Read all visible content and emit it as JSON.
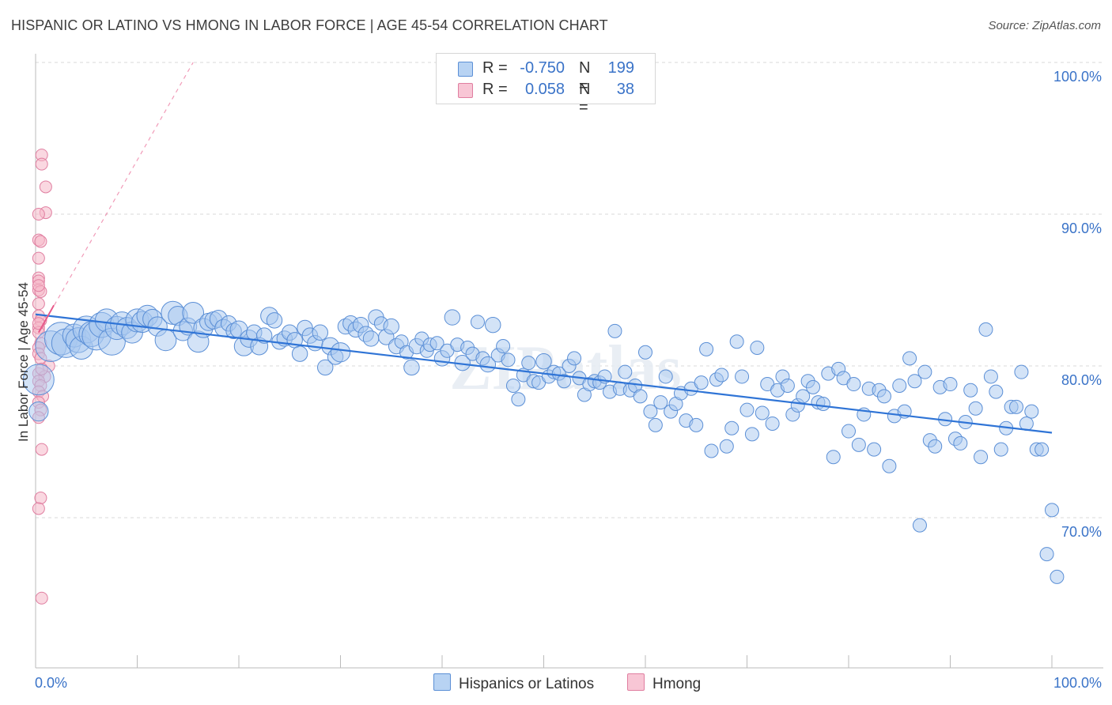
{
  "title": "HISPANIC OR LATINO VS HMONG IN LABOR FORCE | AGE 45-54 CORRELATION CHART",
  "source": "Source: ZipAtlas.com",
  "watermark": "ZIPatlas",
  "colors": {
    "blue_fill": "#a8c8f0",
    "blue_stroke": "#5b8fd6",
    "blue_line": "#2f74d6",
    "pink_fill": "#f5b8c9",
    "pink_stroke": "#e07ea0",
    "pink_line": "#e8598a",
    "accent_text": "#3a73c8",
    "grid": "#d9d9d9"
  },
  "legend_top": {
    "rows": [
      {
        "r_label": "R =",
        "r_value": "-0.750",
        "n_label": "N =",
        "n_value": "199",
        "color": "blue"
      },
      {
        "r_label": "R =",
        "r_value": "0.058",
        "n_label": "N =",
        "n_value": "38",
        "color": "pink"
      }
    ]
  },
  "legend_bottom": {
    "items": [
      {
        "label": "Hispanics or Latinos",
        "color": "blue"
      },
      {
        "label": "Hmong",
        "color": "pink"
      }
    ]
  },
  "chart_data": {
    "type": "scatter",
    "title": "HISPANIC OR LATINO VS HMONG IN LABOR FORCE | AGE 45-54 CORRELATION CHART",
    "ylabel": "In Labor Force | Age 45-54",
    "xlabel": "",
    "xlim": [
      0,
      100
    ],
    "ylim": [
      60,
      102
    ],
    "x_tick_labels": [
      "0.0%",
      "100.0%"
    ],
    "y_ticks": [
      70,
      80,
      90,
      100
    ],
    "y_tick_labels": [
      "70.0%",
      "80.0%",
      "90.0%",
      "100.0%"
    ],
    "grid": true,
    "legend_placement": "top-center",
    "series": [
      {
        "name": "Hispanics or Latinos",
        "color": "blue",
        "trend": {
          "x0": 0,
          "y0": 83.4,
          "x1": 100,
          "y1": 75.6
        },
        "points": [
          [
            0.3,
            79.1,
            3.2
          ],
          [
            0.3,
            77.0,
            2.0
          ],
          [
            1.5,
            81.3,
            3.2
          ],
          [
            2.5,
            81.8,
            3.4
          ],
          [
            3.0,
            81.5,
            3.0
          ],
          [
            3.8,
            82.0,
            2.4
          ],
          [
            4.2,
            81.7,
            2.6
          ],
          [
            4.5,
            81.2,
            2.4
          ],
          [
            5.0,
            82.4,
            2.8
          ],
          [
            5.5,
            82.1,
            2.6
          ],
          [
            6.0,
            82.0,
            3.0
          ],
          [
            6.5,
            82.7,
            2.6
          ],
          [
            7.0,
            83.0,
            2.4
          ],
          [
            7.5,
            81.6,
            2.8
          ],
          [
            8.0,
            82.5,
            2.4
          ],
          [
            8.5,
            82.8,
            2.4
          ],
          [
            9.0,
            82.5,
            2.2
          ],
          [
            9.5,
            82.2,
            2.2
          ],
          [
            10.0,
            83.0,
            2.4
          ],
          [
            10.5,
            82.9,
            2.2
          ],
          [
            11.0,
            83.3,
            2.2
          ],
          [
            11.5,
            83.1,
            2.0
          ],
          [
            12.0,
            82.6,
            2.0
          ],
          [
            12.8,
            81.7,
            2.2
          ],
          [
            13.5,
            83.5,
            2.4
          ],
          [
            14.0,
            83.3,
            2.0
          ],
          [
            14.5,
            82.3,
            2.0
          ],
          [
            15.0,
            82.6,
            1.8
          ],
          [
            15.5,
            83.5,
            2.2
          ],
          [
            16.0,
            81.6,
            2.2
          ],
          [
            16.5,
            82.5,
            2.0
          ],
          [
            17.0,
            82.9,
            1.8
          ],
          [
            17.5,
            83.0,
            1.8
          ],
          [
            18.0,
            83.1,
            1.8
          ],
          [
            18.5,
            82.5,
            1.8
          ],
          [
            19.0,
            82.8,
            1.6
          ],
          [
            19.5,
            82.3,
            1.6
          ],
          [
            20.0,
            82.4,
            1.8
          ],
          [
            20.5,
            81.3,
            2.0
          ],
          [
            21.0,
            81.8,
            1.8
          ],
          [
            21.5,
            82.2,
            1.6
          ],
          [
            22.0,
            81.3,
            1.8
          ],
          [
            22.5,
            82.0,
            1.6
          ],
          [
            23.0,
            83.3,
            1.8
          ],
          [
            23.5,
            83.0,
            1.6
          ],
          [
            24.0,
            81.6,
            1.6
          ],
          [
            24.5,
            81.8,
            1.6
          ],
          [
            25.0,
            82.2,
            1.6
          ],
          [
            25.5,
            81.7,
            1.6
          ],
          [
            26.0,
            80.8,
            1.6
          ],
          [
            26.5,
            82.5,
            1.6
          ],
          [
            27.0,
            82.0,
            1.6
          ],
          [
            27.5,
            81.5,
            1.6
          ],
          [
            28.0,
            82.2,
            1.6
          ],
          [
            28.5,
            79.9,
            1.6
          ],
          [
            29.0,
            81.3,
            1.8
          ],
          [
            29.5,
            80.6,
            1.6
          ],
          [
            30.0,
            80.9,
            2.0
          ],
          [
            30.5,
            82.6,
            1.6
          ],
          [
            31.0,
            82.8,
            1.6
          ],
          [
            31.5,
            82.4,
            1.6
          ],
          [
            32.0,
            82.7,
            1.6
          ],
          [
            32.5,
            82.1,
            1.6
          ],
          [
            33.0,
            81.8,
            1.6
          ],
          [
            33.5,
            83.2,
            1.6
          ],
          [
            34.0,
            82.8,
            1.4
          ],
          [
            34.5,
            81.9,
            1.6
          ],
          [
            35.0,
            82.6,
            1.6
          ],
          [
            35.5,
            81.3,
            1.6
          ],
          [
            36.0,
            81.6,
            1.4
          ],
          [
            36.5,
            80.9,
            1.4
          ],
          [
            37.0,
            79.9,
            1.6
          ],
          [
            37.5,
            81.3,
            1.6
          ],
          [
            38.0,
            81.8,
            1.4
          ],
          [
            38.5,
            81.0,
            1.4
          ],
          [
            38.8,
            81.4,
            1.4
          ],
          [
            39.5,
            81.5,
            1.4
          ],
          [
            40.0,
            80.5,
            1.6
          ],
          [
            40.5,
            81.0,
            1.4
          ],
          [
            41.0,
            83.2,
            1.6
          ],
          [
            41.5,
            81.4,
            1.4
          ],
          [
            42.0,
            80.2,
            1.6
          ],
          [
            42.5,
            81.2,
            1.4
          ],
          [
            43.0,
            80.8,
            1.4
          ],
          [
            43.5,
            82.9,
            1.4
          ],
          [
            44.0,
            80.5,
            1.4
          ],
          [
            44.5,
            80.1,
            1.6
          ],
          [
            45.0,
            82.7,
            1.6
          ],
          [
            45.5,
            80.7,
            1.4
          ],
          [
            46.0,
            81.3,
            1.4
          ],
          [
            46.5,
            80.4,
            1.4
          ],
          [
            47.0,
            78.7,
            1.4
          ],
          [
            47.5,
            77.8,
            1.4
          ],
          [
            48.0,
            79.4,
            1.4
          ],
          [
            48.5,
            80.2,
            1.4
          ],
          [
            49.0,
            79.0,
            1.4
          ],
          [
            49.5,
            78.9,
            1.4
          ],
          [
            50.0,
            80.3,
            1.6
          ],
          [
            50.5,
            79.3,
            1.4
          ],
          [
            51.0,
            79.6,
            1.4
          ],
          [
            51.5,
            79.5,
            1.4
          ],
          [
            52.0,
            79.0,
            1.4
          ],
          [
            52.5,
            80.0,
            1.4
          ],
          [
            53.0,
            80.5,
            1.4
          ],
          [
            53.5,
            79.2,
            1.4
          ],
          [
            54.0,
            78.1,
            1.4
          ],
          [
            54.5,
            78.8,
            1.4
          ],
          [
            55.0,
            79.0,
            1.4
          ],
          [
            55.5,
            78.9,
            1.4
          ],
          [
            56.0,
            79.3,
            1.4
          ],
          [
            56.5,
            78.3,
            1.4
          ],
          [
            57.0,
            82.3,
            1.4
          ],
          [
            57.5,
            78.5,
            1.4
          ],
          [
            58.0,
            79.6,
            1.4
          ],
          [
            58.5,
            78.4,
            1.4
          ],
          [
            59.0,
            78.7,
            1.4
          ],
          [
            59.5,
            78.0,
            1.4
          ],
          [
            60.0,
            80.9,
            1.4
          ],
          [
            60.5,
            77.0,
            1.4
          ],
          [
            61.0,
            76.1,
            1.4
          ],
          [
            61.5,
            77.6,
            1.4
          ],
          [
            62.0,
            79.3,
            1.4
          ],
          [
            62.5,
            77.0,
            1.4
          ],
          [
            63.0,
            77.5,
            1.4
          ],
          [
            63.5,
            78.2,
            1.4
          ],
          [
            64.0,
            76.4,
            1.4
          ],
          [
            64.5,
            78.5,
            1.4
          ],
          [
            65.0,
            76.1,
            1.4
          ],
          [
            65.5,
            78.9,
            1.4
          ],
          [
            66.0,
            81.1,
            1.4
          ],
          [
            66.5,
            74.4,
            1.4
          ],
          [
            67.0,
            79.1,
            1.4
          ],
          [
            67.5,
            79.4,
            1.4
          ],
          [
            68.0,
            74.7,
            1.4
          ],
          [
            68.5,
            75.9,
            1.4
          ],
          [
            69.0,
            81.6,
            1.4
          ],
          [
            69.5,
            79.3,
            1.4
          ],
          [
            70.0,
            77.1,
            1.4
          ],
          [
            70.5,
            75.5,
            1.4
          ],
          [
            71.0,
            81.2,
            1.4
          ],
          [
            71.5,
            76.9,
            1.4
          ],
          [
            72.0,
            78.8,
            1.4
          ],
          [
            72.5,
            76.2,
            1.4
          ],
          [
            73.0,
            78.4,
            1.4
          ],
          [
            73.5,
            79.3,
            1.4
          ],
          [
            74.0,
            78.7,
            1.4
          ],
          [
            74.5,
            76.8,
            1.4
          ],
          [
            75.0,
            77.4,
            1.4
          ],
          [
            75.5,
            78.0,
            1.4
          ],
          [
            76.0,
            79.0,
            1.4
          ],
          [
            76.5,
            78.6,
            1.4
          ],
          [
            77.0,
            77.6,
            1.4
          ],
          [
            77.5,
            77.5,
            1.4
          ],
          [
            78.0,
            79.5,
            1.4
          ],
          [
            78.5,
            74.0,
            1.4
          ],
          [
            79.0,
            79.8,
            1.4
          ],
          [
            79.5,
            79.2,
            1.4
          ],
          [
            80.0,
            75.7,
            1.4
          ],
          [
            80.5,
            78.8,
            1.4
          ],
          [
            81.0,
            74.8,
            1.4
          ],
          [
            81.5,
            76.8,
            1.4
          ],
          [
            82.0,
            78.5,
            1.4
          ],
          [
            82.5,
            74.5,
            1.4
          ],
          [
            83.0,
            78.4,
            1.4
          ],
          [
            83.5,
            78.0,
            1.4
          ],
          [
            84.0,
            73.4,
            1.4
          ],
          [
            84.5,
            76.7,
            1.4
          ],
          [
            85.0,
            78.7,
            1.4
          ],
          [
            85.5,
            77.0,
            1.4
          ],
          [
            86.0,
            80.5,
            1.4
          ],
          [
            86.5,
            79.0,
            1.4
          ],
          [
            87.0,
            69.5,
            1.4
          ],
          [
            87.5,
            79.6,
            1.4
          ],
          [
            88.0,
            75.1,
            1.4
          ],
          [
            88.5,
            74.7,
            1.4
          ],
          [
            89.0,
            78.6,
            1.4
          ],
          [
            89.5,
            76.5,
            1.4
          ],
          [
            90.0,
            78.8,
            1.4
          ],
          [
            90.5,
            75.2,
            1.4
          ],
          [
            91.0,
            74.9,
            1.4
          ],
          [
            91.5,
            76.3,
            1.4
          ],
          [
            92.0,
            78.4,
            1.4
          ],
          [
            92.5,
            77.2,
            1.4
          ],
          [
            93.0,
            74.0,
            1.4
          ],
          [
            93.5,
            82.4,
            1.4
          ],
          [
            94.0,
            79.3,
            1.4
          ],
          [
            94.5,
            78.3,
            1.4
          ],
          [
            95.0,
            74.5,
            1.4
          ],
          [
            95.5,
            75.9,
            1.4
          ],
          [
            96.0,
            77.3,
            1.4
          ],
          [
            96.5,
            77.3,
            1.4
          ],
          [
            97.0,
            79.6,
            1.4
          ],
          [
            97.5,
            76.2,
            1.4
          ],
          [
            98.0,
            77.0,
            1.4
          ],
          [
            98.5,
            74.5,
            1.4
          ],
          [
            99.0,
            74.5,
            1.4
          ],
          [
            99.5,
            67.6,
            1.4
          ],
          [
            100.0,
            70.5,
            1.4
          ],
          [
            100.5,
            66.1,
            1.4
          ]
        ]
      },
      {
        "name": "Hmong",
        "color": "pink",
        "trend": {
          "x0": 0.3,
          "y0": 82.2,
          "x1": 1.8,
          "y1": 84.0
        },
        "trend_dashed": {
          "x0": 0.3,
          "y0": 82.2,
          "x1": 15.5,
          "y1": 100.0
        },
        "points": [
          [
            0.6,
            93.9
          ],
          [
            0.6,
            93.3
          ],
          [
            1.0,
            91.8
          ],
          [
            1.0,
            90.1
          ],
          [
            0.3,
            90.0
          ],
          [
            0.3,
            88.3
          ],
          [
            0.5,
            88.2
          ],
          [
            0.3,
            87.1
          ],
          [
            0.3,
            85.8
          ],
          [
            0.3,
            85.6
          ],
          [
            0.3,
            85.0
          ],
          [
            0.5,
            84.9
          ],
          [
            0.3,
            84.1
          ],
          [
            0.3,
            83.3
          ],
          [
            0.5,
            83.0
          ],
          [
            0.3,
            82.5
          ],
          [
            0.3,
            82.2
          ],
          [
            0.5,
            81.5
          ],
          [
            0.3,
            81.2
          ],
          [
            0.3,
            80.8
          ],
          [
            0.5,
            80.5
          ],
          [
            1.3,
            80.0
          ],
          [
            0.3,
            79.5
          ],
          [
            0.9,
            79.3
          ],
          [
            0.3,
            79.0
          ],
          [
            0.5,
            78.7
          ],
          [
            0.3,
            78.3
          ],
          [
            0.7,
            78.0
          ],
          [
            0.3,
            77.6
          ],
          [
            0.5,
            77.1
          ],
          [
            0.3,
            76.6
          ],
          [
            0.6,
            74.5
          ],
          [
            0.5,
            71.3
          ],
          [
            0.3,
            70.6
          ],
          [
            0.6,
            64.7
          ],
          [
            0.3,
            85.3
          ],
          [
            0.3,
            82.8
          ],
          [
            0.6,
            79.8
          ]
        ]
      }
    ]
  }
}
